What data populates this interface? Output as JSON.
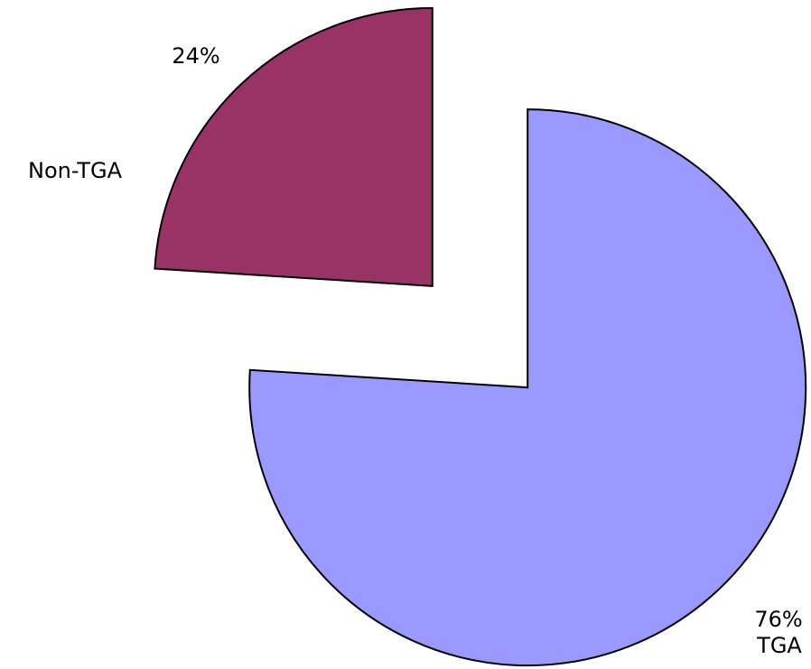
{
  "chart_data": {
    "type": "pie",
    "categories": [
      "TGA",
      "Non-TGA"
    ],
    "values": [
      76,
      24
    ],
    "value_labels": [
      "76%",
      "24%"
    ],
    "colors": [
      "#9999ff",
      "#993366"
    ]
  }
}
